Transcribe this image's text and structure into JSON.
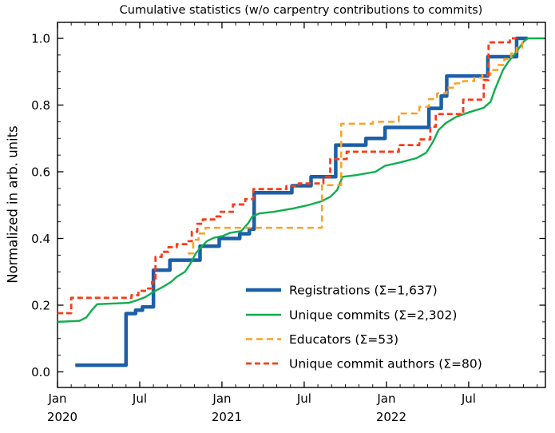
{
  "figure": {
    "title": "Cumulative statistics (w/o carpentry contributions to commits)",
    "ylabel": "Normalized in arb. units"
  },
  "chart_data": {
    "type": "line",
    "title": "Cumulative statistics (w/o carpentry contributions to commits)",
    "xlabel": "",
    "ylabel": "Normalized in arb. units",
    "x_unit": "months since Jan 2020",
    "xlim": [
      0,
      35.6
    ],
    "ylim": [
      -0.05,
      1.05
    ],
    "grid": false,
    "legend_position": "inside lower-right, no frame",
    "x_ticks_major": [
      {
        "m": 0,
        "label": "Jan",
        "year": "2020"
      },
      {
        "m": 6,
        "label": "Jul",
        "year": ""
      },
      {
        "m": 12,
        "label": "Jan",
        "year": "2021"
      },
      {
        "m": 18,
        "label": "Jul",
        "year": ""
      },
      {
        "m": 24,
        "label": "Jan",
        "year": "2022"
      },
      {
        "m": 30,
        "label": "Jul",
        "year": ""
      }
    ],
    "x_minor_step_months": 1,
    "y_ticks_major": [
      0.0,
      0.2,
      0.4,
      0.6,
      0.8,
      1.0
    ],
    "y_minor_step": 0.05,
    "series": [
      {
        "name": "Registrations",
        "legend_label": "Registrations  (Σ=1,637)",
        "total": 1637,
        "color": "#1b5fa8",
        "width": 4.5,
        "dash": null,
        "style": "step",
        "points": [
          [
            1.3,
            0.02
          ],
          [
            5.0,
            0.175
          ],
          [
            5.7,
            0.185
          ],
          [
            6.2,
            0.195
          ],
          [
            7.0,
            0.305
          ],
          [
            8.2,
            0.335
          ],
          [
            10.4,
            0.377
          ],
          [
            11.8,
            0.4
          ],
          [
            13.3,
            0.414
          ],
          [
            14.0,
            0.428
          ],
          [
            14.35,
            0.537
          ],
          [
            17.1,
            0.558
          ],
          [
            18.5,
            0.585
          ],
          [
            20.3,
            0.68
          ],
          [
            22.5,
            0.7
          ],
          [
            23.9,
            0.733
          ],
          [
            27.1,
            0.79
          ],
          [
            28.0,
            0.827
          ],
          [
            28.4,
            0.887
          ],
          [
            31.4,
            0.945
          ],
          [
            33.5,
            1.0
          ],
          [
            34.3,
            1.0
          ]
        ]
      },
      {
        "name": "Unique commits",
        "legend_label": "Unique commits (Σ=2,302)",
        "total": 2302,
        "color": "#0fae4e",
        "width": 2.4,
        "dash": null,
        "style": "linear",
        "points": [
          [
            0,
            0.15
          ],
          [
            1.6,
            0.153
          ],
          [
            2.1,
            0.163
          ],
          [
            2.5,
            0.185
          ],
          [
            2.9,
            0.203
          ],
          [
            5.2,
            0.207
          ],
          [
            5.6,
            0.212
          ],
          [
            6.4,
            0.224
          ],
          [
            7.0,
            0.24
          ],
          [
            7.7,
            0.255
          ],
          [
            8.3,
            0.27
          ],
          [
            8.7,
            0.285
          ],
          [
            9.3,
            0.3
          ],
          [
            9.7,
            0.325
          ],
          [
            10.1,
            0.356
          ],
          [
            10.5,
            0.375
          ],
          [
            10.9,
            0.392
          ],
          [
            11.4,
            0.402
          ],
          [
            12.1,
            0.408
          ],
          [
            12.6,
            0.417
          ],
          [
            13.4,
            0.422
          ],
          [
            13.9,
            0.445
          ],
          [
            14.2,
            0.465
          ],
          [
            14.7,
            0.475
          ],
          [
            15.8,
            0.48
          ],
          [
            17.2,
            0.49
          ],
          [
            18.3,
            0.5
          ],
          [
            19.3,
            0.512
          ],
          [
            19.9,
            0.525
          ],
          [
            20.4,
            0.545
          ],
          [
            20.8,
            0.585
          ],
          [
            21.8,
            0.59
          ],
          [
            23.2,
            0.6
          ],
          [
            23.9,
            0.618
          ],
          [
            25.0,
            0.628
          ],
          [
            26.2,
            0.641
          ],
          [
            26.9,
            0.657
          ],
          [
            27.4,
            0.69
          ],
          [
            27.8,
            0.725
          ],
          [
            28.3,
            0.745
          ],
          [
            29.1,
            0.765
          ],
          [
            30.0,
            0.778
          ],
          [
            31.1,
            0.792
          ],
          [
            31.6,
            0.81
          ],
          [
            31.9,
            0.845
          ],
          [
            32.2,
            0.875
          ],
          [
            32.5,
            0.905
          ],
          [
            32.9,
            0.93
          ],
          [
            33.3,
            0.95
          ],
          [
            33.7,
            0.972
          ],
          [
            34.0,
            0.99
          ],
          [
            34.3,
            1.0
          ],
          [
            35.5,
            1.0
          ]
        ]
      },
      {
        "name": "Educators",
        "legend_label": "Educators (Σ=53)",
        "total": 53,
        "color": "#ffa01f",
        "width": 2.5,
        "dash": [
          8,
          5
        ],
        "style": "step",
        "points": [
          [
            9.5,
            0.355
          ],
          [
            9.9,
            0.396
          ],
          [
            10.3,
            0.415
          ],
          [
            10.8,
            0.432
          ],
          [
            19.3,
            0.56
          ],
          [
            20.7,
            0.744
          ],
          [
            23.0,
            0.75
          ],
          [
            24.9,
            0.775
          ],
          [
            26.4,
            0.795
          ],
          [
            27.1,
            0.818
          ],
          [
            27.7,
            0.835
          ],
          [
            28.4,
            0.852
          ],
          [
            29.0,
            0.865
          ],
          [
            29.6,
            0.872
          ],
          [
            30.4,
            0.882
          ],
          [
            31.0,
            0.89
          ],
          [
            31.6,
            0.905
          ],
          [
            32.1,
            0.92
          ],
          [
            32.6,
            0.938
          ],
          [
            33.1,
            0.955
          ],
          [
            33.5,
            0.972
          ],
          [
            33.9,
            1.0
          ]
        ]
      },
      {
        "name": "Unique commit authors",
        "legend_label": "Unique commit authors (Σ=80)",
        "total": 80,
        "color": "#f83c1a",
        "width": 2.8,
        "dash": [
          7,
          4
        ],
        "style": "step",
        "points": [
          [
            0,
            0.176
          ],
          [
            1.0,
            0.222
          ],
          [
            5.4,
            0.23
          ],
          [
            5.9,
            0.243
          ],
          [
            6.6,
            0.25
          ],
          [
            6.9,
            0.27
          ],
          [
            7.15,
            0.345
          ],
          [
            7.6,
            0.36
          ],
          [
            8.1,
            0.374
          ],
          [
            8.7,
            0.383
          ],
          [
            9.4,
            0.392
          ],
          [
            9.8,
            0.42
          ],
          [
            10.2,
            0.444
          ],
          [
            10.6,
            0.457
          ],
          [
            11.6,
            0.466
          ],
          [
            11.9,
            0.48
          ],
          [
            12.8,
            0.502
          ],
          [
            13.7,
            0.518
          ],
          [
            14.3,
            0.548
          ],
          [
            16.7,
            0.557
          ],
          [
            17.6,
            0.565
          ],
          [
            19.4,
            0.585
          ],
          [
            19.9,
            0.638
          ],
          [
            21.1,
            0.66
          ],
          [
            24.9,
            0.68
          ],
          [
            26.4,
            0.697
          ],
          [
            27.2,
            0.735
          ],
          [
            27.6,
            0.773
          ],
          [
            29.6,
            0.816
          ],
          [
            31.1,
            0.875
          ],
          [
            31.45,
            0.988
          ],
          [
            33.0,
            1.0
          ],
          [
            33.5,
            1.0
          ]
        ]
      }
    ]
  }
}
